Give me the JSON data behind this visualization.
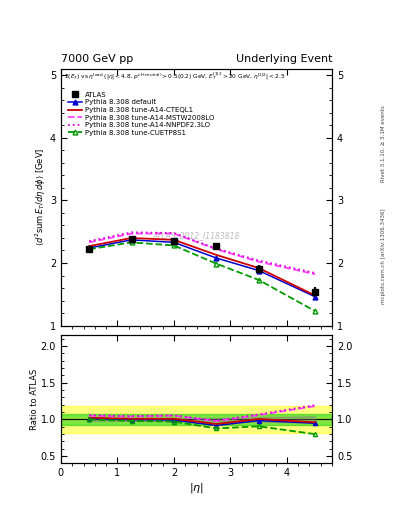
{
  "title_left": "7000 GeV pp",
  "title_right": "Underlying Event",
  "ylabel_main": "$\\langle d^2\\mathrm{sum}\\,E_T/d\\eta\\,d\\phi\\rangle$ [GeV]",
  "ylabel_ratio": "Ratio to ATLAS",
  "xlabel": "$|\\eta|$",
  "annotation": "ATLAS_2012_I1183818",
  "right_label": "mcplots.cern.ch [arXiv:1306.3436]",
  "right_label_top": "Rivet 3.1.10, ≥ 3.1M events",
  "subtitle": "$\\Sigma(E_T)$ vs $\\eta^{\\rm lead}$ ($|\\eta| < 4.8$, $p^{\\rm ch(neutral)} > 0.5(0.2)$ GeV, $E_T^{|1|2} > 20$ GeV, $\\eta^{|1|2}| < 2.5$",
  "eta": [
    0.5,
    1.25,
    2.0,
    2.75,
    3.5,
    4.5
  ],
  "atlas_y": [
    2.22,
    2.38,
    2.35,
    2.27,
    1.91,
    1.54
  ],
  "atlas_yerr": [
    0.05,
    0.05,
    0.05,
    0.05,
    0.06,
    0.07
  ],
  "default_y": [
    2.24,
    2.37,
    2.33,
    2.08,
    1.88,
    1.46
  ],
  "cteql1_y": [
    2.27,
    2.4,
    2.37,
    2.13,
    1.92,
    1.48
  ],
  "mstw_y": [
    2.33,
    2.47,
    2.47,
    2.22,
    2.02,
    1.82
  ],
  "nnpdf_y": [
    2.35,
    2.49,
    2.48,
    2.23,
    2.04,
    1.84
  ],
  "cuetp_y": [
    2.22,
    2.33,
    2.28,
    1.99,
    1.73,
    1.23
  ],
  "atlas_color": "#000000",
  "default_color": "#0000cc",
  "cteql1_color": "#cc0000",
  "mstw_color": "#ff44ff",
  "nnpdf_color": "#dd00dd",
  "cuetp_color": "#009900",
  "ylim_main": [
    1.0,
    5.1
  ],
  "ylim_ratio": [
    0.4,
    2.15
  ],
  "yticks_main": [
    1.0,
    2.0,
    3.0,
    4.0,
    5.0
  ],
  "yticks_ratio": [
    0.5,
    1.0,
    1.5,
    2.0
  ],
  "xlim": [
    0.0,
    4.8
  ],
  "xticks": [
    0,
    1,
    2,
    3,
    4
  ],
  "band_green_alpha": 0.5,
  "band_yellow_alpha": 0.5,
  "band_green_lo": 0.925,
  "band_green_hi": 1.075,
  "band_yellow_lo": 0.82,
  "band_yellow_hi": 1.18
}
